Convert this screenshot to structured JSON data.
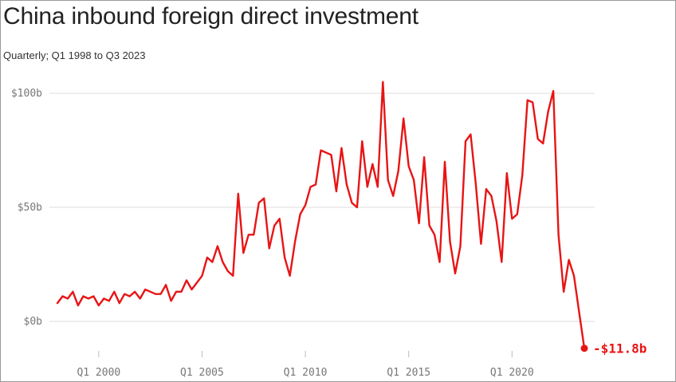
{
  "title": "China inbound foreign direct investment",
  "subtitle": "Quarterly; Q1 1998 to Q3 2023",
  "colors": {
    "line": "#e81414",
    "grid": "#dddddd",
    "axis_text": "#777777",
    "title": "#222222"
  },
  "chart_data": {
    "type": "line",
    "title": "China inbound foreign direct investment",
    "subtitle": "Quarterly; Q1 1998 to Q3 2023",
    "xlabel": "",
    "ylabel": "",
    "ylim": [
      -12,
      104
    ],
    "y_ticks": [
      {
        "value": 0,
        "label": "$0b"
      },
      {
        "value": 50,
        "label": "$50b"
      },
      {
        "value": 100,
        "label": "$100b"
      }
    ],
    "x_ticks": [
      {
        "value": "Q1 2000",
        "label": "Q1 2000"
      },
      {
        "value": "Q1 2005",
        "label": "Q1 2005"
      },
      {
        "value": "Q1 2010",
        "label": "Q1 2010"
      },
      {
        "value": "Q1 2015",
        "label": "Q1 2015"
      },
      {
        "value": "Q1 2020",
        "label": "Q1 2020"
      }
    ],
    "grid": "horizontal",
    "annotation": {
      "at": "Q3 2023",
      "label": "-$11.8b"
    },
    "series": [
      {
        "x": [
          "Q1 1998",
          "Q2 1998",
          "Q3 1998",
          "Q4 1998",
          "Q1 1999",
          "Q2 1999",
          "Q3 1999",
          "Q4 1999",
          "Q1 2000",
          "Q2 2000",
          "Q3 2000",
          "Q4 2000",
          "Q1 2001",
          "Q2 2001",
          "Q3 2001",
          "Q4 2001",
          "Q1 2002",
          "Q2 2002",
          "Q3 2002",
          "Q4 2002",
          "Q1 2003",
          "Q2 2003",
          "Q3 2003",
          "Q4 2003",
          "Q1 2004",
          "Q2 2004",
          "Q3 2004",
          "Q4 2004",
          "Q1 2005",
          "Q2 2005",
          "Q3 2005",
          "Q4 2005",
          "Q1 2006",
          "Q2 2006",
          "Q3 2006",
          "Q4 2006",
          "Q1 2007",
          "Q2 2007",
          "Q3 2007",
          "Q4 2007",
          "Q1 2008",
          "Q2 2008",
          "Q3 2008",
          "Q4 2008",
          "Q1 2009",
          "Q2 2009",
          "Q3 2009",
          "Q4 2009",
          "Q1 2010",
          "Q2 2010",
          "Q3 2010",
          "Q4 2010",
          "Q1 2011",
          "Q2 2011",
          "Q3 2011",
          "Q4 2011",
          "Q1 2012",
          "Q2 2012",
          "Q3 2012",
          "Q4 2012",
          "Q1 2013",
          "Q2 2013",
          "Q3 2013",
          "Q4 2013",
          "Q1 2014",
          "Q2 2014",
          "Q3 2014",
          "Q4 2014",
          "Q1 2015",
          "Q2 2015",
          "Q3 2015",
          "Q4 2015",
          "Q1 2016",
          "Q2 2016",
          "Q3 2016",
          "Q4 2016",
          "Q1 2017",
          "Q2 2017",
          "Q3 2017",
          "Q4 2017",
          "Q1 2018",
          "Q2 2018",
          "Q3 2018",
          "Q4 2018",
          "Q1 2019",
          "Q2 2019",
          "Q3 2019",
          "Q4 2019",
          "Q1 2020",
          "Q2 2020",
          "Q3 2020",
          "Q4 2020",
          "Q1 2021",
          "Q2 2021",
          "Q3 2021",
          "Q4 2021",
          "Q1 2022",
          "Q2 2022",
          "Q3 2022",
          "Q4 2022",
          "Q1 2023",
          "Q2 2023",
          "Q3 2023"
        ],
        "values": [
          8,
          11,
          10,
          13,
          7,
          11,
          10,
          11,
          7,
          10,
          9,
          13,
          8,
          12,
          11,
          13,
          10,
          14,
          13,
          12,
          12,
          16,
          9,
          13,
          13,
          18,
          14,
          17,
          20,
          28,
          26,
          33,
          26,
          22,
          20,
          56,
          30,
          38,
          38,
          52,
          54,
          32,
          42,
          45,
          28,
          20,
          35,
          47,
          51,
          59,
          60,
          75,
          74,
          73,
          57,
          76,
          60,
          52,
          50,
          79,
          59,
          69,
          59,
          105,
          62,
          55,
          66,
          89,
          68,
          62,
          43,
          72,
          42,
          38,
          26,
          70,
          35,
          21,
          33,
          79,
          82,
          60,
          34,
          58,
          55,
          44,
          26,
          65,
          45,
          47,
          64,
          97,
          96,
          80,
          78,
          92,
          101,
          38,
          13,
          27,
          20,
          4,
          -11.8
        ]
      }
    ]
  }
}
